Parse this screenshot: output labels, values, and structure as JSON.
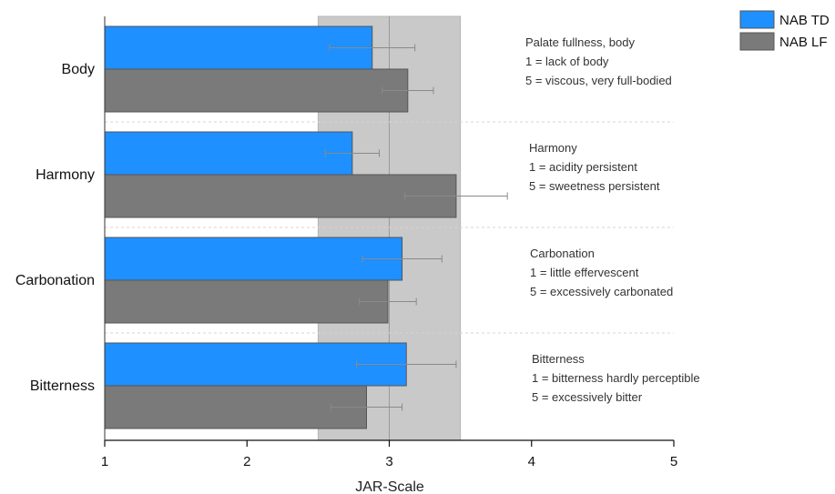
{
  "chart_data": {
    "type": "bar",
    "orientation": "horizontal",
    "categories": [
      "Body",
      "Harmony",
      "Carbonation",
      "Bitterness"
    ],
    "series": [
      {
        "name": "NAB TD",
        "color": "#1e90ff",
        "values": [
          2.88,
          2.74,
          3.09,
          3.12
        ],
        "errors": [
          0.3,
          0.19,
          0.28,
          0.35
        ]
      },
      {
        "name": "NAB LF",
        "color": "#7a7a7a",
        "values": [
          3.13,
          3.47,
          2.99,
          2.84
        ],
        "errors": [
          0.18,
          0.36,
          0.2,
          0.25
        ]
      }
    ],
    "xlabel": "JAR-Scale",
    "xlim": [
      1,
      5
    ],
    "xticks": [
      "1",
      "2",
      "3",
      "4",
      "5"
    ],
    "reference_band": [
      2.5,
      3.5
    ],
    "reference_line": 3,
    "legend_position": "top-right",
    "annotations": [
      [
        "Palate fullness, body",
        "1 = lack of body",
        "5 = viscous, very full-bodied"
      ],
      [
        "Harmony",
        "1 = acidity persistent",
        "5 = sweetness persistent"
      ],
      [
        "Carbonation",
        "1 = little effervescent",
        "5 = excessively carbonated"
      ],
      [
        "Bitterness",
        "1 = bitterness hardly perceptible",
        "5 = excessively bitter"
      ]
    ]
  }
}
